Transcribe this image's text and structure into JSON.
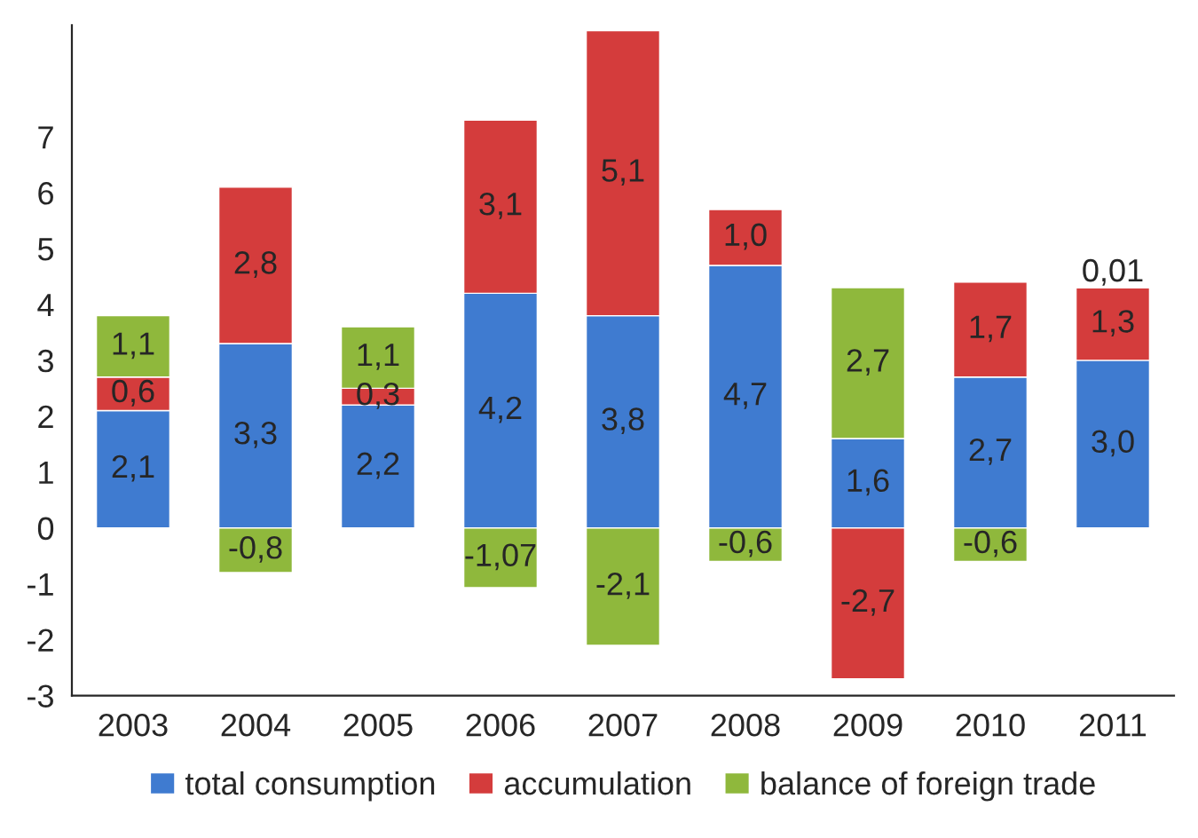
{
  "chart_data": {
    "type": "bar",
    "stacked": true,
    "categories": [
      "2003",
      "2004",
      "2005",
      "2006",
      "2007",
      "2008",
      "2009",
      "2010",
      "2011"
    ],
    "series": [
      {
        "name": "total consumption",
        "color": "#3f7bd0",
        "values": [
          2.1,
          3.3,
          2.2,
          4.2,
          3.8,
          4.7,
          1.6,
          2.7,
          3.0
        ],
        "value_labels": [
          "2,1",
          "3,3",
          "2,2",
          "4,2",
          "3,8",
          "4,7",
          "1,6",
          "2,7",
          "3,0"
        ]
      },
      {
        "name": "accumulation",
        "color": "#d43c3c",
        "values": [
          0.6,
          2.8,
          0.3,
          3.1,
          5.1,
          1.0,
          -2.7,
          1.7,
          1.3
        ],
        "value_labels": [
          "0,6",
          "2,8",
          "0,3",
          "3,1",
          "5,1",
          "1,0",
          "-2,7",
          "1,7",
          "1,3"
        ]
      },
      {
        "name": "balance of foreign trade",
        "color": "#8fb83c",
        "values": [
          1.1,
          -0.8,
          1.1,
          -1.07,
          -2.1,
          -0.6,
          2.7,
          -0.6,
          0.01
        ],
        "value_labels": [
          "1,1",
          "-0,8",
          "1,1",
          "-1,07",
          "-2,1",
          "-0,6",
          "2,7",
          "-0,6",
          "0,01"
        ]
      }
    ],
    "ylim": [
      -3,
      9
    ],
    "yticks": [
      -3,
      -2,
      -1,
      0,
      1,
      2,
      3,
      4,
      5,
      6,
      7
    ],
    "grid": false,
    "legend": "bottom"
  }
}
